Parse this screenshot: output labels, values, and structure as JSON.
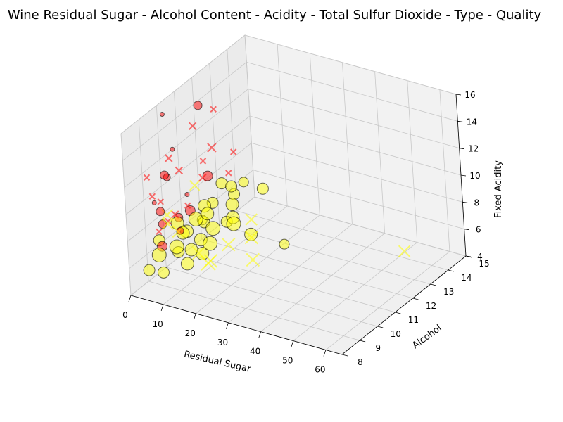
{
  "chart_data": {
    "type": "scatter",
    "title": "Wine Residual Sugar - Alcohol Content - Acidity - Total Sulfur Dioxide - Type - Quality",
    "xlabel": "Residual Sugar",
    "ylabel": "Alcohol",
    "zlabel": "Fixed Acidity",
    "xlim": [
      0,
      65
    ],
    "ylim": [
      8,
      15
    ],
    "zlim": [
      4,
      16
    ],
    "x_ticks": [
      "0",
      "10",
      "20",
      "30",
      "40",
      "50",
      "60"
    ],
    "y_ticks": [
      "8",
      "9",
      "10",
      "11",
      "12",
      "13",
      "14",
      "15"
    ],
    "z_ticks": [
      "4",
      "6",
      "8",
      "10",
      "12",
      "14",
      "16"
    ],
    "grid": true,
    "colors": {
      "red": "#ff0000",
      "white": "#ffff00"
    },
    "series": [
      {
        "color": "#ff0000",
        "points": [
          {
            "x": 1.9,
            "y": 9.4,
            "z": 7.4,
            "s": 8,
            "m": "x"
          },
          {
            "x": 2.6,
            "y": 9.8,
            "z": 7.8,
            "s": 8,
            "m": "x"
          },
          {
            "x": 2.3,
            "y": 9.8,
            "z": 11.2,
            "s": 12,
            "m": "o"
          },
          {
            "x": 1.9,
            "y": 10.5,
            "z": 7.3,
            "s": 12,
            "m": "o"
          },
          {
            "x": 2.1,
            "y": 11.0,
            "z": 8.5,
            "s": 6,
            "m": "o"
          },
          {
            "x": 1.6,
            "y": 9.2,
            "z": 10.2,
            "s": 8,
            "m": "x"
          },
          {
            "x": 2.4,
            "y": 10.3,
            "z": 12.6,
            "s": 6,
            "m": "o"
          },
          {
            "x": 3.1,
            "y": 12.0,
            "z": 8.9,
            "s": 14,
            "m": "o"
          },
          {
            "x": 1.8,
            "y": 9.6,
            "z": 9.4,
            "s": 8,
            "m": "x"
          },
          {
            "x": 2.8,
            "y": 11.4,
            "z": 13.2,
            "s": 10,
            "m": "x"
          },
          {
            "x": 4.5,
            "y": 10.1,
            "z": 6.9,
            "s": 10,
            "m": "o"
          },
          {
            "x": 2.2,
            "y": 9.9,
            "z": 15.6,
            "s": 6,
            "m": "o"
          },
          {
            "x": 6.1,
            "y": 11.2,
            "z": 9.8,
            "s": 10,
            "m": "x"
          },
          {
            "x": 1.4,
            "y": 9.0,
            "z": 11.8,
            "s": 8,
            "m": "x"
          },
          {
            "x": 2.0,
            "y": 12.5,
            "z": 10.4,
            "s": 12,
            "m": "x"
          },
          {
            "x": 3.8,
            "y": 10.7,
            "z": 8.1,
            "s": 8,
            "m": "x"
          },
          {
            "x": 2.6,
            "y": 9.5,
            "z": 7.9,
            "s": 12,
            "m": "o"
          },
          {
            "x": 1.7,
            "y": 10.2,
            "z": 12.0,
            "s": 10,
            "m": "x"
          },
          {
            "x": 2.9,
            "y": 13.5,
            "z": 9.1,
            "s": 8,
            "m": "x"
          },
          {
            "x": 8.3,
            "y": 10.9,
            "z": 11.5,
            "s": 8,
            "m": "x"
          },
          {
            "x": 2.5,
            "y": 11.8,
            "z": 14.3,
            "s": 12,
            "m": "o"
          },
          {
            "x": 3.2,
            "y": 9.3,
            "z": 6.5,
            "s": 14,
            "m": "o"
          },
          {
            "x": 1.9,
            "y": 10.0,
            "z": 10.8,
            "s": 10,
            "m": "o"
          },
          {
            "x": 5.5,
            "y": 9.7,
            "z": 8.6,
            "s": 10,
            "m": "x"
          },
          {
            "x": 2.2,
            "y": 11.1,
            "z": 7.2,
            "s": 14,
            "m": "o"
          },
          {
            "x": 1.5,
            "y": 12.8,
            "z": 12.9,
            "s": 8,
            "m": "x"
          },
          {
            "x": 2.7,
            "y": 9.1,
            "z": 9.9,
            "s": 6,
            "m": "o"
          },
          {
            "x": 3.5,
            "y": 10.4,
            "z": 11.0,
            "s": 10,
            "m": "x"
          },
          {
            "x": 2.1,
            "y": 9.5,
            "z": 8.8,
            "s": 12,
            "m": "o"
          },
          {
            "x": 15.5,
            "y": 11.0,
            "z": 11.0,
            "s": 8,
            "m": "x"
          }
        ]
      },
      {
        "color": "#ffff00",
        "points": [
          {
            "x": 1.2,
            "y": 9.5,
            "z": 6.6,
            "s": 16,
            "m": "o"
          },
          {
            "x": 5.3,
            "y": 10.1,
            "z": 6.8,
            "s": 18,
            "m": "o"
          },
          {
            "x": 8.4,
            "y": 11.2,
            "z": 6.2,
            "s": 20,
            "m": "o"
          },
          {
            "x": 12.5,
            "y": 9.8,
            "z": 7.1,
            "s": 18,
            "m": "o"
          },
          {
            "x": 1.8,
            "y": 12.4,
            "z": 6.4,
            "s": 16,
            "m": "o"
          },
          {
            "x": 6.7,
            "y": 10.6,
            "z": 7.4,
            "s": 20,
            "m": "o"
          },
          {
            "x": 15.1,
            "y": 9.2,
            "z": 6.9,
            "s": 18,
            "m": "x"
          },
          {
            "x": 3.4,
            "y": 11.6,
            "z": 5.9,
            "s": 16,
            "m": "o"
          },
          {
            "x": 10.2,
            "y": 12.0,
            "z": 6.3,
            "s": 18,
            "m": "o"
          },
          {
            "x": 7.9,
            "y": 9.4,
            "z": 7.8,
            "s": 16,
            "m": "x"
          },
          {
            "x": 2.5,
            "y": 10.8,
            "z": 6.0,
            "s": 18,
            "m": "o"
          },
          {
            "x": 13.8,
            "y": 11.4,
            "z": 6.7,
            "s": 20,
            "m": "o"
          },
          {
            "x": 4.6,
            "y": 13.1,
            "z": 6.5,
            "s": 16,
            "m": "o"
          },
          {
            "x": 18.2,
            "y": 10.3,
            "z": 6.6,
            "s": 18,
            "m": "x"
          },
          {
            "x": 9.5,
            "y": 9.0,
            "z": 7.2,
            "s": 20,
            "m": "o"
          },
          {
            "x": 1.1,
            "y": 11.9,
            "z": 5.6,
            "s": 14,
            "m": "o"
          },
          {
            "x": 20.4,
            "y": 8.9,
            "z": 7.0,
            "s": 18,
            "m": "x"
          },
          {
            "x": 6.2,
            "y": 12.7,
            "z": 7.6,
            "s": 16,
            "m": "o"
          },
          {
            "x": 11.6,
            "y": 10.0,
            "z": 5.8,
            "s": 18,
            "m": "o"
          },
          {
            "x": 3.0,
            "y": 9.7,
            "z": 8.4,
            "s": 16,
            "m": "x"
          },
          {
            "x": 16.5,
            "y": 9.6,
            "z": 7.3,
            "s": 20,
            "m": "o"
          },
          {
            "x": 7.3,
            "y": 11.0,
            "z": 8.0,
            "s": 18,
            "m": "o"
          },
          {
            "x": 14.2,
            "y": 12.3,
            "z": 6.1,
            "s": 16,
            "m": "x"
          },
          {
            "x": 2.0,
            "y": 10.4,
            "z": 7.0,
            "s": 18,
            "m": "o"
          },
          {
            "x": 10.8,
            "y": 13.6,
            "z": 6.8,
            "s": 16,
            "m": "o"
          },
          {
            "x": 5.0,
            "y": 8.8,
            "z": 6.5,
            "s": 20,
            "m": "o"
          },
          {
            "x": 22.6,
            "y": 10.8,
            "z": 6.9,
            "s": 18,
            "m": "x"
          },
          {
            "x": 8.8,
            "y": 9.9,
            "z": 6.0,
            "s": 18,
            "m": "o"
          },
          {
            "x": 1.5,
            "y": 13.0,
            "z": 7.2,
            "s": 16,
            "m": "o"
          },
          {
            "x": 12.0,
            "y": 11.7,
            "z": 7.7,
            "s": 18,
            "m": "o"
          },
          {
            "x": 17.3,
            "y": 9.3,
            "z": 6.2,
            "s": 20,
            "m": "x"
          },
          {
            "x": 4.1,
            "y": 10.0,
            "z": 5.4,
            "s": 16,
            "m": "o"
          },
          {
            "x": 9.0,
            "y": 12.9,
            "z": 7.9,
            "s": 14,
            "m": "o"
          },
          {
            "x": 19.6,
            "y": 11.3,
            "z": 6.4,
            "s": 18,
            "m": "o"
          },
          {
            "x": 6.5,
            "y": 9.1,
            "z": 8.6,
            "s": 16,
            "m": "x"
          },
          {
            "x": 13.1,
            "y": 8.9,
            "z": 6.3,
            "s": 18,
            "m": "o"
          },
          {
            "x": 2.9,
            "y": 11.3,
            "z": 8.9,
            "s": 14,
            "m": "x"
          },
          {
            "x": 11.0,
            "y": 10.5,
            "z": 8.2,
            "s": 18,
            "m": "o"
          },
          {
            "x": 7.6,
            "y": 12.1,
            "z": 5.7,
            "s": 16,
            "m": "o"
          },
          {
            "x": 65.8,
            "y": 11.7,
            "z": 7.8,
            "s": 16,
            "m": "x"
          },
          {
            "x": 31.6,
            "y": 11.0,
            "z": 6.8,
            "s": 14,
            "m": "o"
          },
          {
            "x": 26.1,
            "y": 10.2,
            "z": 6.1,
            "s": 18,
            "m": "x"
          },
          {
            "x": 1.0,
            "y": 8.9,
            "z": 5.0,
            "s": 16,
            "m": "o"
          },
          {
            "x": 3.7,
            "y": 9.2,
            "z": 4.7,
            "s": 16,
            "m": "o"
          }
        ]
      }
    ]
  }
}
